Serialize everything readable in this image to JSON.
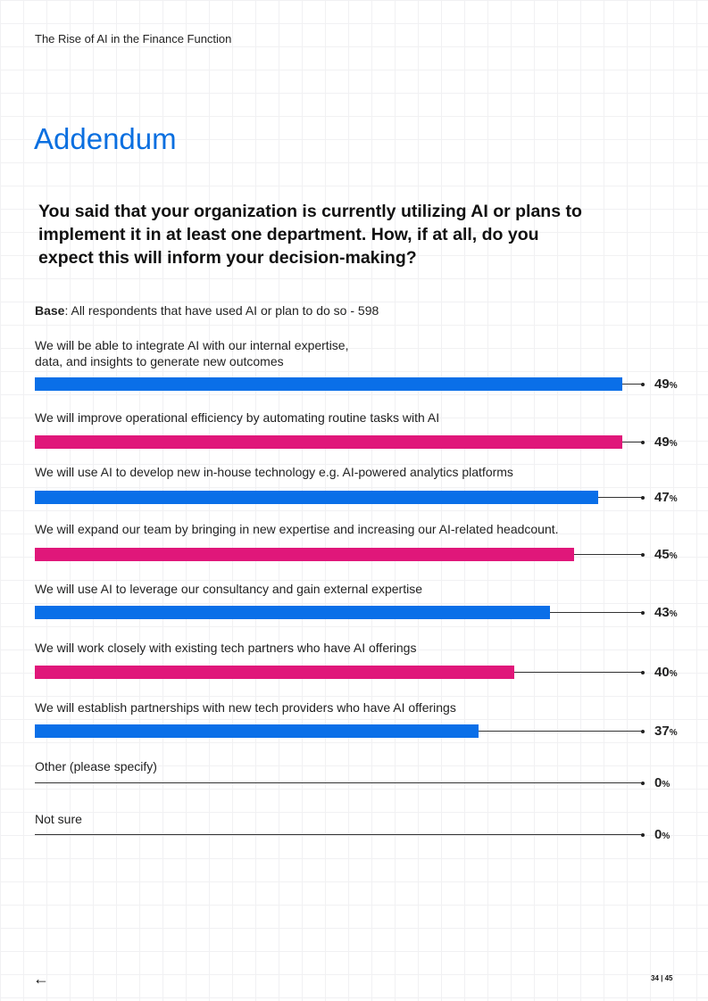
{
  "header": {
    "doc_title": "The Rise of AI in the Finance Function"
  },
  "heading": "Addendum",
  "question": "You said that your organization is currently utilizing AI or plans to implement it in at least one department. How, if at all, do you expect this will inform your decision-making?",
  "base": {
    "label": "Base",
    "text": ": All respondents that have used AI or plan to do so - 598"
  },
  "colors": {
    "blue": "#0a6fe8",
    "magenta": "#e0177a",
    "heading": "#0a6fe0"
  },
  "chart_data": {
    "type": "bar",
    "orientation": "horizontal",
    "unit": "%",
    "categories": [
      "We will be able to integrate AI with our internal expertise, data, and insights to generate new outcomes",
      "We will improve operational efficiency by automating routine tasks with AI",
      "We will use AI to develop new in-house technology e.g. AI-powered analytics platforms",
      "We will expand our team by bringing in new expertise and increasing our AI-related headcount.",
      "We will use AI to leverage our consultancy and gain external expertise",
      "We will work closely with existing tech partners who have AI offerings",
      "We will establish partnerships with new tech providers who have AI offerings",
      "Other (please specify)",
      "Not sure"
    ],
    "values": [
      49,
      49,
      47,
      45,
      43,
      40,
      37,
      0,
      0
    ],
    "bar_colors": [
      "#0a6fe8",
      "#e0177a",
      "#0a6fe8",
      "#e0177a",
      "#0a6fe8",
      "#e0177a",
      "#0a6fe8",
      "#0a6fe8",
      "#0a6fe8"
    ],
    "grid": false
  },
  "footer": {
    "back_icon": "arrow-left-icon",
    "page": "34 | 45"
  }
}
